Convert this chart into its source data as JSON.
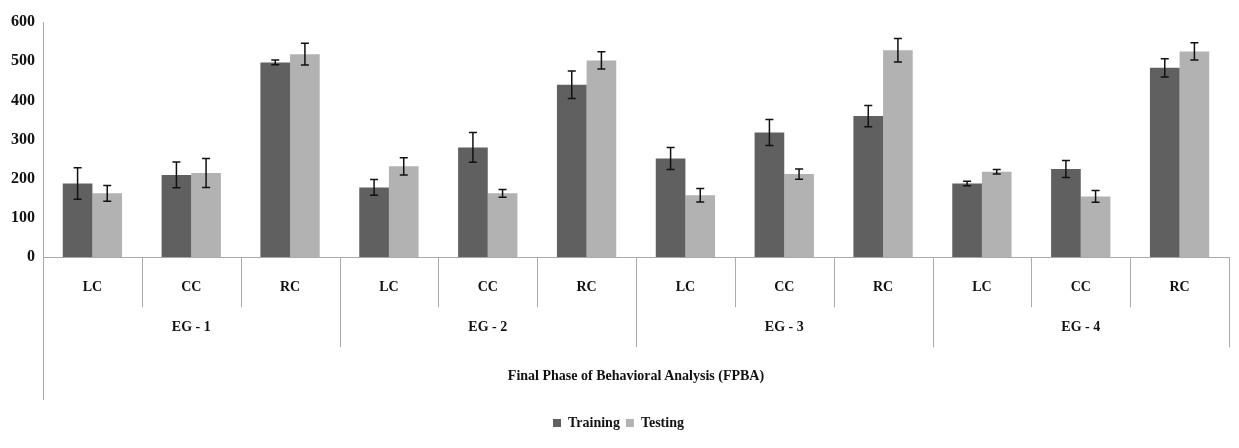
{
  "chart_data": {
    "type": "bar",
    "categories": [
      "LC",
      "CC",
      "RC",
      "LC",
      "CC",
      "RC",
      "LC",
      "CC",
      "RC",
      "LC",
      "CC",
      "RC"
    ],
    "annotations": [
      "EG - 1",
      "EG - 2",
      "EG - 3",
      "EG - 4",
      "Final Phase of Behavioral Analysis (FPBA)"
    ],
    "series": [
      {
        "name": "Training",
        "color": "#606060",
        "values": [
          188,
          210,
          497,
          178,
          280,
          440,
          252,
          318,
          360,
          188,
          225,
          483
        ],
        "errors": [
          40,
          33,
          6,
          20,
          38,
          35,
          28,
          33,
          27,
          6,
          22,
          23
        ]
      },
      {
        "name": "Testing",
        "color": "#b2b2b2",
        "values": [
          163,
          215,
          518,
          232,
          163,
          502,
          158,
          212,
          528,
          218,
          155,
          525
        ],
        "errors": [
          20,
          37,
          28,
          22,
          10,
          22,
          17,
          13,
          30,
          6,
          15,
          22
        ]
      }
    ],
    "ylim": [
      0,
      600
    ],
    "yticks": [
      0,
      100,
      200,
      300,
      400,
      500,
      600
    ],
    "grid": false,
    "legend": "bottom"
  }
}
